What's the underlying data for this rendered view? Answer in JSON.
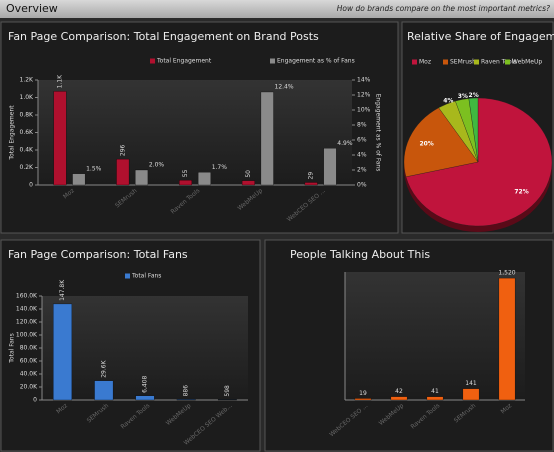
{
  "header": {
    "title": "Overview",
    "subtitle": "How do brands compare on the most important metrics?"
  },
  "chart_data": [
    {
      "type": "combo",
      "title": "Fan Page Comparison: Total Engagement on Brand Posts",
      "categories": [
        "Moz",
        "SEMrush",
        "Raven Tools",
        "WebMeUp",
        "WebCEO SEO ..."
      ],
      "ylabel": "Total Engagement",
      "y2label": "Engagement as % of Fans",
      "series": [
        {
          "name": "Total Engagement",
          "color": "#b0102e",
          "values": [
            1070,
            296,
            55,
            50,
            29
          ],
          "value_labels": [
            "1.1K",
            "296",
            "55",
            "50",
            "29"
          ]
        },
        {
          "name": "Engagement as % of Fans",
          "color": "#8a8a8a",
          "axis": "y2",
          "values": [
            1.5,
            2.0,
            1.7,
            12.4,
            4.9
          ],
          "value_labels": [
            "1.5%",
            "2.0%",
            "1.7%",
            "12.4%",
            "4.9%"
          ]
        }
      ],
      "ylim": [
        0,
        1200
      ],
      "yticks": [
        0,
        {
          "value": 200,
          "label": "0.2K"
        },
        {
          "value": 400,
          "label": "0.4K"
        },
        {
          "value": 600,
          "label": "0.6K"
        },
        {
          "value": 800,
          "label": "0.8K"
        },
        {
          "value": 1000,
          "label": "1.0K"
        },
        {
          "value": 1200,
          "label": "1.2K"
        }
      ],
      "y2lim": [
        0,
        14
      ],
      "y2ticks": [
        {
          "value": 0,
          "label": "0%"
        },
        {
          "value": 2,
          "label": "2%"
        },
        {
          "value": 4,
          "label": "4%"
        },
        {
          "value": 6,
          "label": "6%"
        },
        {
          "value": 8,
          "label": "8%"
        },
        {
          "value": 10,
          "label": "10%"
        },
        {
          "value": 12,
          "label": "12%"
        },
        {
          "value": 14,
          "label": "14%"
        }
      ]
    },
    {
      "type": "pie",
      "title": "Relative Share of Engagement",
      "categories": [
        "Moz",
        "SEMrush",
        "Raven Tools",
        "WebMeUp",
        null
      ],
      "values": [
        72,
        20,
        4,
        3,
        2
      ],
      "value_labels": [
        "72%",
        "20%",
        "4%",
        "3%",
        "2%"
      ],
      "colors": [
        "#c0143c",
        "#c8560c",
        "#a8b81c",
        "#7cc020",
        "#40b840"
      ]
    },
    {
      "type": "bar",
      "title": "Fan Page Comparison: Total Fans",
      "categories": [
        "Moz",
        "SEMrush",
        "Raven Tools",
        "WebMeUp",
        "WebCEO SEO Web..."
      ],
      "series": [
        {
          "name": "Total Fans",
          "color": "#3a7ad0",
          "values": [
            147800,
            29600,
            6408,
            886,
            598
          ],
          "value_labels": [
            "147.8K",
            "29.6K",
            "6,408",
            "886",
            "598"
          ]
        }
      ],
      "ylabel": "Total Fans",
      "ylim": [
        0,
        160000
      ],
      "yticks": [
        0,
        {
          "value": 20000,
          "label": "20.0K"
        },
        {
          "value": 40000,
          "label": "40.0K"
        },
        {
          "value": 60000,
          "label": "60.0K"
        },
        {
          "value": 80000,
          "label": "80.0K"
        },
        {
          "value": 100000,
          "label": "100.0K"
        },
        {
          "value": 120000,
          "label": "120.0K"
        },
        {
          "value": 140000,
          "label": "140.0K"
        },
        {
          "value": 160000,
          "label": "160.0K"
        }
      ]
    },
    {
      "type": "bar",
      "title": "People Talking About This",
      "categories": [
        "WebCEO SEO ...",
        "WebMeUp",
        "Raven Tools",
        "SEMrush",
        "Moz"
      ],
      "series": [
        {
          "color": "#f06010",
          "values": [
            19,
            42,
            41,
            141,
            1520
          ],
          "value_labels": [
            "19",
            "42",
            "41",
            "141",
            "1,520"
          ]
        }
      ]
    }
  ]
}
